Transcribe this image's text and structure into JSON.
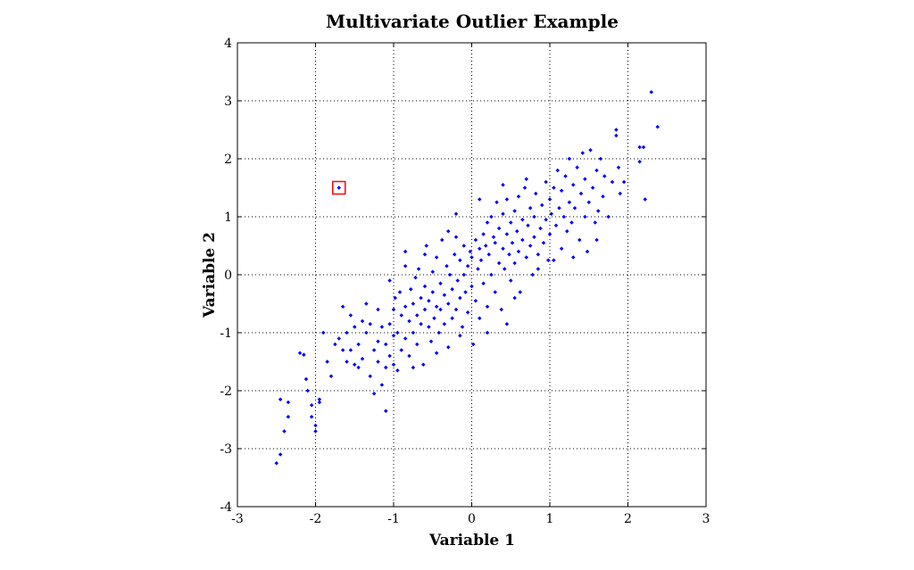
{
  "chart_data": {
    "type": "scatter",
    "title": "Multivariate Outlier Example",
    "xlabel": "Variable 1",
    "ylabel": "Variable 2",
    "xlim": [
      -3,
      3
    ],
    "ylim": [
      -4,
      4
    ],
    "xticks": [
      -3,
      -2,
      -1,
      0,
      1,
      2,
      3
    ],
    "yticks": [
      -4,
      -3,
      -2,
      -1,
      0,
      1,
      2,
      3,
      4
    ],
    "grid": true,
    "point_color": "#0000ff",
    "highlight_color": "#ff0000",
    "highlighted_point": {
      "x": -1.7,
      "y": 1.5
    },
    "series": [
      {
        "points": [
          [
            -2.5,
            -3.25
          ],
          [
            -2.45,
            -3.1
          ],
          [
            -2.45,
            -2.15
          ],
          [
            -2.4,
            -2.7
          ],
          [
            -2.35,
            -2.45
          ],
          [
            -2.35,
            -2.2
          ],
          [
            -2.2,
            -1.35
          ],
          [
            -2.15,
            -1.38
          ],
          [
            -2.12,
            -1.8
          ],
          [
            -2.1,
            -2.0
          ],
          [
            -2.05,
            -2.45
          ],
          [
            -2.05,
            -2.25
          ],
          [
            -2.0,
            -2.7
          ],
          [
            -2.0,
            -2.6
          ],
          [
            -1.95,
            -2.2
          ],
          [
            -1.95,
            -2.15
          ],
          [
            -1.9,
            -1.0
          ],
          [
            -1.85,
            -1.5
          ],
          [
            -1.8,
            -1.75
          ],
          [
            -1.75,
            -1.2
          ],
          [
            -1.7,
            -1.1
          ],
          [
            -1.65,
            -1.3
          ],
          [
            -1.65,
            -0.55
          ],
          [
            -1.6,
            -1.5
          ],
          [
            -1.6,
            -1.0
          ],
          [
            -1.55,
            -1.3
          ],
          [
            -1.5,
            -0.9
          ],
          [
            -1.5,
            -1.55
          ],
          [
            -1.45,
            -1.2
          ],
          [
            -1.45,
            -1.6
          ],
          [
            -1.4,
            -0.8
          ],
          [
            -1.4,
            -1.45
          ],
          [
            -1.35,
            -1.0
          ],
          [
            -1.3,
            -0.85
          ],
          [
            -1.3,
            -1.75
          ],
          [
            -1.25,
            -1.3
          ],
          [
            -1.25,
            -2.05
          ],
          [
            -1.2,
            -0.6
          ],
          [
            -1.2,
            -1.15
          ],
          [
            -1.2,
            -1.5
          ],
          [
            -1.15,
            -1.9
          ],
          [
            -1.15,
            -0.9
          ],
          [
            -1.1,
            -1.2
          ],
          [
            -1.1,
            -1.6
          ],
          [
            -1.1,
            -2.35
          ],
          [
            -1.05,
            -0.85
          ],
          [
            -1.05,
            -1.4
          ],
          [
            -1.0,
            -1.05
          ],
          [
            -1.0,
            -1.55
          ],
          [
            -1.0,
            -0.6
          ],
          [
            -0.98,
            -0.4
          ],
          [
            -0.95,
            -1.0
          ],
          [
            -0.95,
            -1.65
          ],
          [
            -0.92,
            -0.3
          ],
          [
            -0.9,
            -0.7
          ],
          [
            -0.9,
            -1.3
          ],
          [
            -0.85,
            -0.55
          ],
          [
            -0.85,
            -1.1
          ],
          [
            -0.85,
            0.4
          ],
          [
            -0.8,
            -0.8
          ],
          [
            -0.8,
            -1.4
          ],
          [
            -0.78,
            -0.25
          ],
          [
            -0.75,
            -0.5
          ],
          [
            -0.75,
            -1.0
          ],
          [
            -0.72,
            -0.05
          ],
          [
            -0.7,
            -0.7
          ],
          [
            -0.7,
            -1.2
          ],
          [
            -0.68,
            0.1
          ],
          [
            -0.65,
            -0.4
          ],
          [
            -0.65,
            -0.85
          ],
          [
            -0.62,
            -1.55
          ],
          [
            -0.6,
            -0.6
          ],
          [
            -0.6,
            -0.2
          ],
          [
            -0.58,
            0.5
          ],
          [
            -0.55,
            -0.9
          ],
          [
            -0.55,
            -0.45
          ],
          [
            -0.52,
            -1.15
          ],
          [
            -0.5,
            -0.3
          ],
          [
            -0.5,
            0.05
          ],
          [
            -0.48,
            -0.75
          ],
          [
            -0.45,
            -0.55
          ],
          [
            -0.45,
            0.3
          ],
          [
            -0.42,
            -1.0
          ],
          [
            -0.4,
            -0.15
          ],
          [
            -0.4,
            -0.6
          ],
          [
            -0.38,
            0.6
          ],
          [
            -0.35,
            -0.35
          ],
          [
            -0.35,
            -0.85
          ],
          [
            -0.32,
            0.15
          ],
          [
            -0.3,
            -0.5
          ],
          [
            -0.3,
            -1.25
          ],
          [
            -0.28,
            0.0
          ],
          [
            -0.25,
            -0.25
          ],
          [
            -0.25,
            -0.75
          ],
          [
            -0.22,
            0.35
          ],
          [
            -0.2,
            -0.6
          ],
          [
            -0.2,
            1.05
          ],
          [
            -0.18,
            -0.1
          ],
          [
            -0.15,
            -0.4
          ],
          [
            -0.15,
            0.25
          ],
          [
            -0.12,
            -0.9
          ],
          [
            -0.1,
            0.0
          ],
          [
            -0.1,
            0.5
          ],
          [
            -0.08,
            -0.3
          ],
          [
            -0.05,
            0.15
          ],
          [
            -0.05,
            -0.65
          ],
          [
            -0.02,
            0.4
          ],
          [
            0.0,
            -0.2
          ],
          [
            0.0,
            0.3
          ],
          [
            0.02,
            -1.2
          ],
          [
            0.05,
            0.6
          ],
          [
            0.05,
            -0.45
          ],
          [
            0.08,
            0.1
          ],
          [
            0.1,
            0.45
          ],
          [
            0.1,
            -0.75
          ],
          [
            0.12,
            0.25
          ],
          [
            0.15,
            -0.15
          ],
          [
            0.15,
            0.7
          ],
          [
            0.18,
            0.5
          ],
          [
            0.2,
            -0.55
          ],
          [
            0.2,
            0.9
          ],
          [
            0.22,
            0.35
          ],
          [
            0.25,
            0.0
          ],
          [
            0.25,
            1.0
          ],
          [
            0.28,
            0.65
          ],
          [
            0.3,
            -0.3
          ],
          [
            0.3,
            0.55
          ],
          [
            0.32,
            1.25
          ],
          [
            0.35,
            0.2
          ],
          [
            0.35,
            0.8
          ],
          [
            0.38,
            -0.6
          ],
          [
            0.4,
            0.45
          ],
          [
            0.4,
            1.05
          ],
          [
            0.42,
            0.1
          ],
          [
            0.45,
            0.7
          ],
          [
            0.45,
            1.3
          ],
          [
            0.48,
            0.35
          ],
          [
            0.5,
            0.9
          ],
          [
            0.5,
            -0.1
          ],
          [
            0.52,
            0.55
          ],
          [
            0.55,
            1.1
          ],
          [
            0.55,
            0.2
          ],
          [
            0.58,
            0.75
          ],
          [
            0.6,
            1.35
          ],
          [
            0.6,
            0.4
          ],
          [
            0.62,
            -0.3
          ],
          [
            0.65,
            0.95
          ],
          [
            0.65,
            0.6
          ],
          [
            0.68,
            1.5
          ],
          [
            0.7,
            0.3
          ],
          [
            0.72,
            0.85
          ],
          [
            0.75,
            1.15
          ],
          [
            0.75,
            0.5
          ],
          [
            0.78,
            0.0
          ],
          [
            0.8,
            1.0
          ],
          [
            0.8,
            0.65
          ],
          [
            0.82,
            1.4
          ],
          [
            0.85,
            0.35
          ],
          [
            0.88,
            0.8
          ],
          [
            0.9,
            1.2
          ],
          [
            0.92,
            0.55
          ],
          [
            0.95,
            1.6
          ],
          [
            0.95,
            0.95
          ],
          [
            0.98,
            0.25
          ],
          [
            1.0,
            1.3
          ],
          [
            1.0,
            0.7
          ],
          [
            1.02,
            1.05
          ],
          [
            1.05,
            1.5
          ],
          [
            1.08,
            0.85
          ],
          [
            1.1,
            1.8
          ],
          [
            1.12,
            1.15
          ],
          [
            1.15,
            0.45
          ],
          [
            1.15,
            1.45
          ],
          [
            1.18,
            1.0
          ],
          [
            1.2,
            1.7
          ],
          [
            1.22,
            0.75
          ],
          [
            1.25,
            1.25
          ],
          [
            1.25,
            2.0
          ],
          [
            1.28,
            0.9
          ],
          [
            1.3,
            1.55
          ],
          [
            1.32,
            1.15
          ],
          [
            1.35,
            1.85
          ],
          [
            1.38,
            0.6
          ],
          [
            1.4,
            1.4
          ],
          [
            1.42,
            2.1
          ],
          [
            1.45,
            1.0
          ],
          [
            1.45,
            1.65
          ],
          [
            1.48,
            0.4
          ],
          [
            1.5,
            1.25
          ],
          [
            1.52,
            2.15
          ],
          [
            1.55,
            1.5
          ],
          [
            1.58,
            0.9
          ],
          [
            1.6,
            1.8
          ],
          [
            1.62,
            1.1
          ],
          [
            1.65,
            2.0
          ],
          [
            1.68,
            1.35
          ],
          [
            1.7,
            1.7
          ],
          [
            1.75,
            1.0
          ],
          [
            1.8,
            1.6
          ],
          [
            1.85,
            2.5
          ],
          [
            1.88,
            1.85
          ],
          [
            1.9,
            1.4
          ],
          [
            1.95,
            1.6
          ],
          [
            2.15,
            2.2
          ],
          [
            2.15,
            1.95
          ],
          [
            2.2,
            2.2
          ],
          [
            2.22,
            1.3
          ],
          [
            2.3,
            3.15
          ],
          [
            2.38,
            2.55
          ],
          [
            1.85,
            2.4
          ],
          [
            -1.05,
            -0.1
          ],
          [
            -0.85,
            0.15
          ],
          [
            -0.6,
            0.35
          ],
          [
            -0.3,
            0.75
          ],
          [
            0.1,
            1.3
          ],
          [
            0.4,
            1.55
          ],
          [
            -1.35,
            -0.5
          ],
          [
            -0.15,
            -1.05
          ],
          [
            0.55,
            -0.4
          ],
          [
            -0.45,
            -1.35
          ],
          [
            0.85,
            0.1
          ],
          [
            1.3,
            0.3
          ],
          [
            -0.75,
            -1.6
          ],
          [
            0.7,
            1.65
          ],
          [
            -1.55,
            -0.7
          ],
          [
            0.2,
            -1.0
          ],
          [
            1.05,
            0.25
          ],
          [
            -0.2,
            0.65
          ],
          [
            0.45,
            -0.85
          ],
          [
            1.6,
            0.6
          ]
        ]
      }
    ]
  }
}
